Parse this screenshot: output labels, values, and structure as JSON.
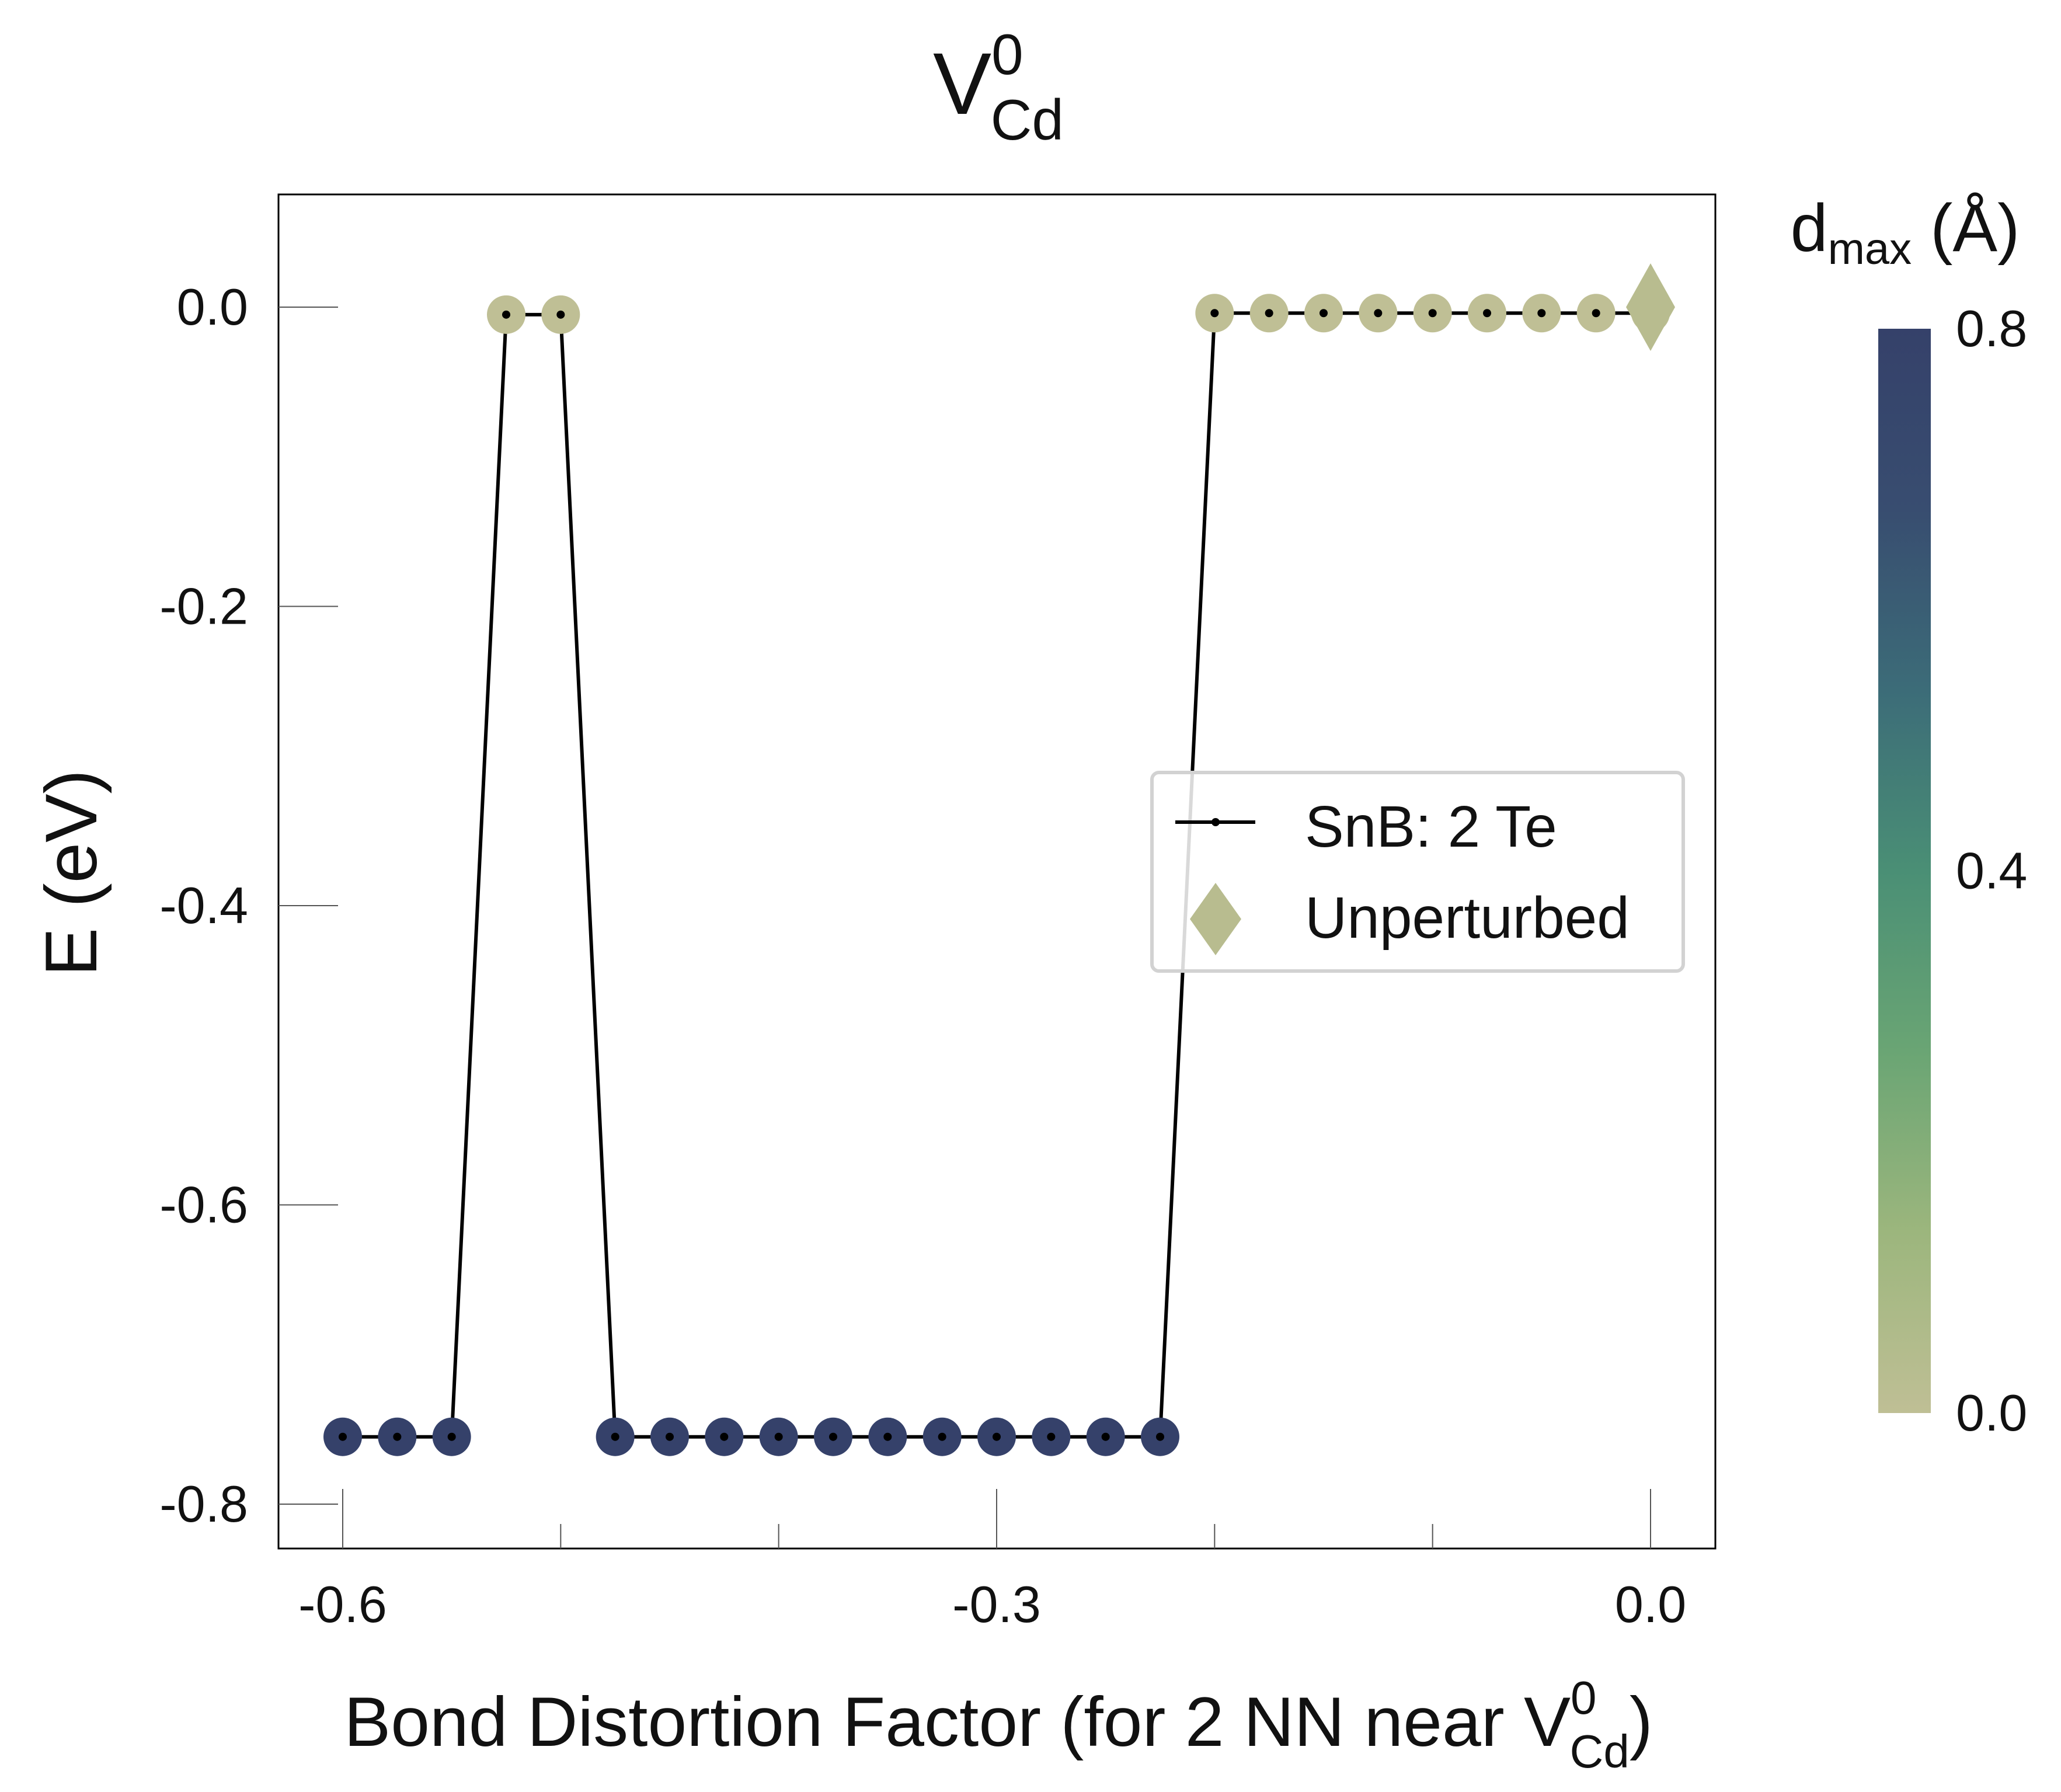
{
  "chart_data": {
    "type": "scatter",
    "title": {
      "main": "V",
      "sup": "0",
      "sub": "Cd"
    },
    "xlabel": {
      "main": "Bond Distortion Factor (for 2 NN near V",
      "sup": "0",
      "sub": "Cd",
      "close": ")"
    },
    "ylabel": "E (eV)",
    "xlim": [
      -0.63,
      0.03
    ],
    "ylim": [
      -0.83,
      0.075
    ],
    "x_ticks": [
      {
        "value": -0.6,
        "label": "-0.6"
      },
      {
        "value": -0.3,
        "label": "-0.3"
      },
      {
        "value": 0.0,
        "label": "0.0"
      }
    ],
    "x_minor_ticks": [
      -0.5,
      -0.4,
      -0.2,
      -0.1
    ],
    "y_ticks": [
      {
        "value": 0.0,
        "label": "0.0"
      },
      {
        "value": -0.2,
        "label": "-0.2"
      },
      {
        "value": -0.4,
        "label": "-0.4"
      },
      {
        "value": -0.6,
        "label": "-0.6"
      },
      {
        "value": -0.8,
        "label": "-0.8"
      }
    ],
    "grid": false,
    "legend_position": "center-right",
    "series": [
      {
        "name": "SnB: 2 Te",
        "line_color": "#000000",
        "points": [
          {
            "x": -0.6,
            "y": -0.755,
            "d": 0.8
          },
          {
            "x": -0.575,
            "y": -0.755,
            "d": 0.8
          },
          {
            "x": -0.55,
            "y": -0.755,
            "d": 0.8
          },
          {
            "x": -0.525,
            "y": -0.005,
            "d": 0.0
          },
          {
            "x": -0.5,
            "y": -0.005,
            "d": 0.0
          },
          {
            "x": -0.475,
            "y": -0.755,
            "d": 0.8
          },
          {
            "x": -0.45,
            "y": -0.755,
            "d": 0.8
          },
          {
            "x": -0.425,
            "y": -0.755,
            "d": 0.8
          },
          {
            "x": -0.4,
            "y": -0.755,
            "d": 0.8
          },
          {
            "x": -0.375,
            "y": -0.755,
            "d": 0.8
          },
          {
            "x": -0.35,
            "y": -0.755,
            "d": 0.8
          },
          {
            "x": -0.325,
            "y": -0.755,
            "d": 0.8
          },
          {
            "x": -0.3,
            "y": -0.755,
            "d": 0.8
          },
          {
            "x": -0.275,
            "y": -0.755,
            "d": 0.8
          },
          {
            "x": -0.25,
            "y": -0.755,
            "d": 0.8
          },
          {
            "x": -0.225,
            "y": -0.755,
            "d": 0.8
          },
          {
            "x": -0.2,
            "y": -0.004,
            "d": 0.0
          },
          {
            "x": -0.175,
            "y": -0.004,
            "d": 0.0
          },
          {
            "x": -0.15,
            "y": -0.004,
            "d": 0.0
          },
          {
            "x": -0.125,
            "y": -0.004,
            "d": 0.0
          },
          {
            "x": -0.1,
            "y": -0.004,
            "d": 0.0
          },
          {
            "x": -0.075,
            "y": -0.004,
            "d": 0.0
          },
          {
            "x": -0.05,
            "y": -0.004,
            "d": 0.0
          },
          {
            "x": -0.025,
            "y": -0.004,
            "d": 0.0
          },
          {
            "x": 0.0,
            "y": -0.004,
            "d": 0.0
          }
        ]
      },
      {
        "name": "Unperturbed",
        "marker": "diamond",
        "color": "#b8bc8f",
        "points": [
          {
            "x": 0.0,
            "y": 0.0
          }
        ]
      }
    ],
    "colorbar": {
      "label": {
        "main": "d",
        "sub": "max",
        "rest": " (Å)"
      },
      "range": [
        0.0,
        0.8
      ],
      "ticks": [
        {
          "value": 0.8,
          "label": "0.8"
        },
        {
          "value": 0.4,
          "label": "0.4"
        },
        {
          "value": 0.0,
          "label": "0.0"
        }
      ],
      "colors": [
        "#bfbf95",
        "#9cb67d",
        "#6aa574",
        "#4a8f75",
        "#3c6c78",
        "#384d70",
        "#35416a"
      ]
    }
  }
}
